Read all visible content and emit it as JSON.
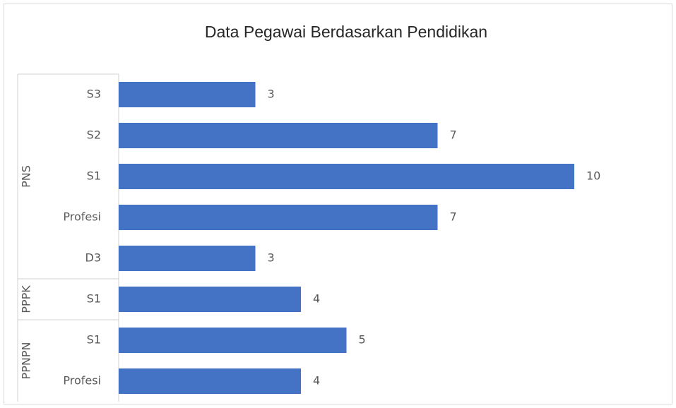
{
  "chart_data": {
    "type": "bar",
    "title": "Data Pegawai Berdasarkan Pendidikan",
    "color": "#4472c4",
    "groups": [
      {
        "name": "PNS",
        "categories": [
          "S3",
          "S2",
          "S1",
          "Profesi",
          "D3"
        ],
        "values": [
          3,
          7,
          10,
          7,
          3
        ]
      },
      {
        "name": "PPPK",
        "categories": [
          "S1"
        ],
        "values": [
          4
        ]
      },
      {
        "name": "PPNPN",
        "categories": [
          "S1",
          "Profesi"
        ],
        "values": [
          5,
          4
        ]
      }
    ]
  }
}
